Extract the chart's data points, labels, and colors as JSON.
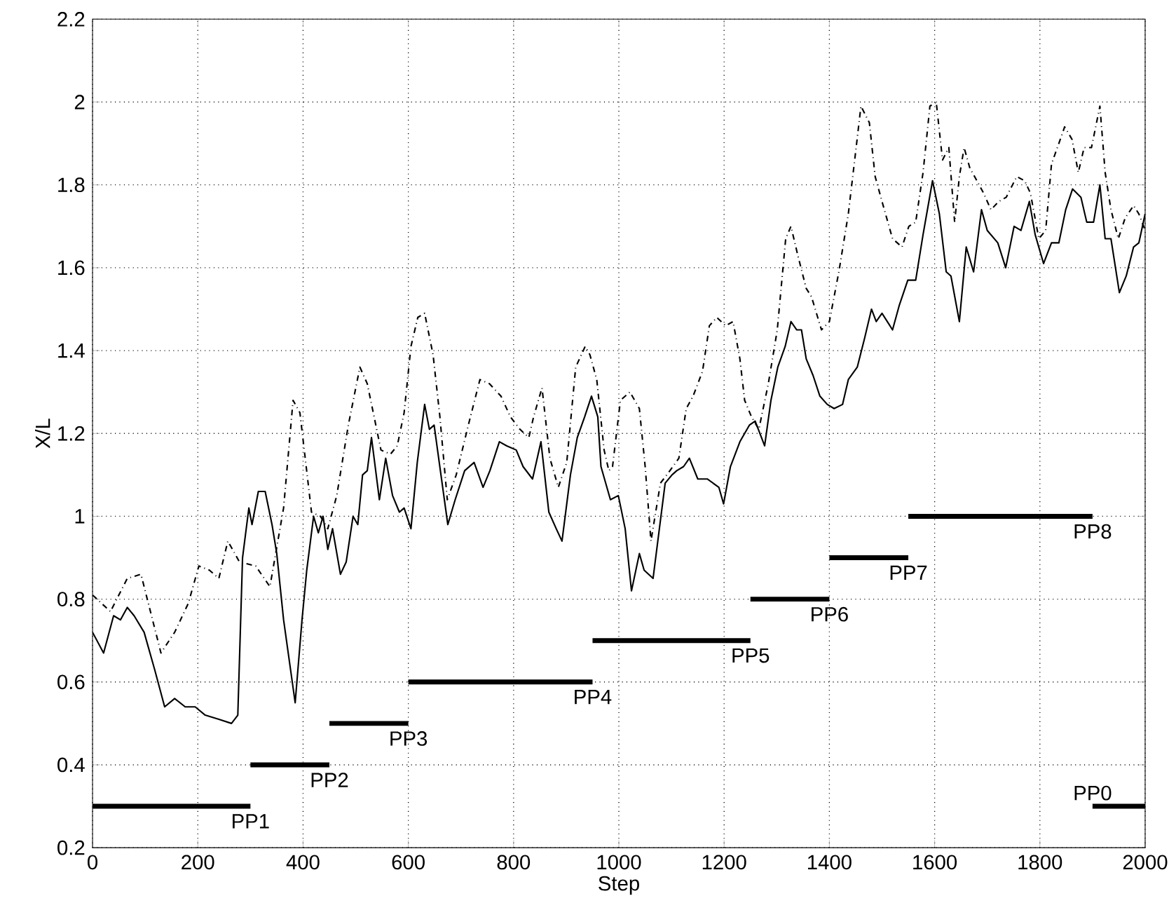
{
  "chart_data": {
    "type": "line",
    "xlabel": "Step",
    "ylabel": "X/L",
    "xlim": [
      0,
      2000
    ],
    "ylim": [
      0.2,
      2.2
    ],
    "xticks": [
      0,
      200,
      400,
      600,
      800,
      1000,
      1200,
      1400,
      1600,
      1800,
      2000
    ],
    "yticks": [
      0.2,
      0.4,
      0.6,
      0.8,
      1,
      1.2,
      1.4,
      1.6,
      1.8,
      2,
      2.2
    ],
    "grid": true,
    "series": [
      {
        "color": "#000000",
        "line_style": "solid",
        "x": [
          0,
          21,
          40,
          53,
          66,
          79,
          98,
          118,
          137,
          156,
          176,
          195,
          214,
          240,
          264,
          276,
          285,
          297,
          303,
          315,
          328,
          341,
          350,
          363,
          385,
          398,
          407,
          420,
          429,
          438,
          447,
          456,
          471,
          482,
          495,
          504,
          513,
          522,
          530,
          545,
          557,
          570,
          583,
          592,
          605,
          617,
          631,
          640,
          649,
          662,
          675,
          689,
          707,
          725,
          742,
          755,
          773,
          787,
          805,
          818,
          836,
          852,
          867,
          881,
          892,
          908,
          921,
          935,
          948,
          960,
          966,
          984,
          999,
          1012,
          1024,
          1039,
          1048,
          1065,
          1074,
          1088,
          1101,
          1110,
          1123,
          1134,
          1150,
          1168,
          1190,
          1199,
          1212,
          1230,
          1248,
          1259,
          1277,
          1289,
          1302,
          1316,
          1327,
          1338,
          1347,
          1356,
          1369,
          1382,
          1396,
          1409,
          1425,
          1436,
          1453,
          1467,
          1480,
          1489,
          1500,
          1520,
          1533,
          1549,
          1564,
          1578,
          1596,
          1609,
          1622,
          1631,
          1647,
          1660,
          1674,
          1689,
          1700,
          1720,
          1735,
          1751,
          1764,
          1780,
          1791,
          1807,
          1822,
          1836,
          1849,
          1862,
          1878,
          1889,
          1902,
          1914,
          1924,
          1935,
          1951,
          1964,
          1978,
          1988,
          2000
        ],
        "values": [
          0.72,
          0.67,
          0.76,
          0.75,
          0.78,
          0.76,
          0.72,
          0.63,
          0.54,
          0.56,
          0.54,
          0.54,
          0.52,
          0.51,
          0.5,
          0.52,
          0.9,
          1.02,
          0.98,
          1.06,
          1.06,
          0.98,
          0.91,
          0.75,
          0.55,
          0.75,
          0.87,
          1.0,
          0.96,
          1.0,
          0.92,
          0.97,
          0.86,
          0.89,
          1.0,
          0.98,
          1.1,
          1.11,
          1.19,
          1.04,
          1.14,
          1.05,
          1.01,
          1.02,
          0.97,
          1.13,
          1.27,
          1.21,
          1.22,
          1.1,
          0.98,
          1.04,
          1.11,
          1.13,
          1.07,
          1.11,
          1.18,
          1.17,
          1.16,
          1.12,
          1.09,
          1.18,
          1.01,
          0.97,
          0.94,
          1.1,
          1.19,
          1.24,
          1.29,
          1.24,
          1.12,
          1.04,
          1.05,
          0.97,
          0.82,
          0.91,
          0.87,
          0.85,
          0.94,
          1.08,
          1.1,
          1.11,
          1.12,
          1.14,
          1.09,
          1.09,
          1.07,
          1.03,
          1.12,
          1.18,
          1.22,
          1.23,
          1.17,
          1.28,
          1.36,
          1.41,
          1.47,
          1.45,
          1.45,
          1.38,
          1.34,
          1.29,
          1.27,
          1.26,
          1.27,
          1.33,
          1.36,
          1.43,
          1.5,
          1.47,
          1.49,
          1.45,
          1.51,
          1.57,
          1.57,
          1.68,
          1.81,
          1.73,
          1.59,
          1.58,
          1.47,
          1.65,
          1.59,
          1.74,
          1.69,
          1.66,
          1.6,
          1.7,
          1.69,
          1.76,
          1.68,
          1.61,
          1.66,
          1.66,
          1.74,
          1.79,
          1.77,
          1.71,
          1.71,
          1.8,
          1.67,
          1.67,
          1.54,
          1.58,
          1.65,
          1.66,
          1.73
        ]
      },
      {
        "color": "#000000",
        "line_style": "dashdot",
        "x": [
          0,
          34,
          66,
          92,
          130,
          156,
          182,
          202,
          222,
          240,
          257,
          266,
          279,
          310,
          337,
          363,
          381,
          394,
          416,
          433,
          447,
          464,
          486,
          508,
          522,
          535,
          548,
          566,
          579,
          592,
          605,
          618,
          631,
          647,
          660,
          674,
          691,
          714,
          736,
          754,
          776,
          794,
          812,
          829,
          838,
          854,
          869,
          885,
          901,
          918,
          936,
          945,
          958,
          972,
          981,
          988,
          1003,
          1021,
          1039,
          1050,
          1061,
          1079,
          1097,
          1114,
          1128,
          1141,
          1159,
          1172,
          1186,
          1203,
          1217,
          1230,
          1239,
          1252,
          1266,
          1284,
          1301,
          1317,
          1327,
          1340,
          1356,
          1366,
          1385,
          1400,
          1418,
          1436,
          1449,
          1460,
          1476,
          1487,
          1500,
          1520,
          1538,
          1551,
          1564,
          1578,
          1591,
          1603,
          1615,
          1627,
          1638,
          1647,
          1656,
          1667,
          1676,
          1693,
          1707,
          1722,
          1736,
          1756,
          1771,
          1782,
          1798,
          1811,
          1822,
          1836,
          1847,
          1861,
          1873,
          1884,
          1898,
          1914,
          1924,
          1935,
          1949,
          1962,
          1978,
          1988,
          2000
        ],
        "values": [
          0.81,
          0.77,
          0.85,
          0.86,
          0.67,
          0.72,
          0.79,
          0.88,
          0.87,
          0.85,
          0.94,
          0.92,
          0.89,
          0.88,
          0.83,
          1.02,
          1.28,
          1.25,
          1.01,
          1.0,
          0.97,
          1.05,
          1.22,
          1.36,
          1.32,
          1.24,
          1.16,
          1.15,
          1.17,
          1.25,
          1.41,
          1.48,
          1.49,
          1.39,
          1.24,
          1.04,
          1.1,
          1.22,
          1.33,
          1.32,
          1.29,
          1.24,
          1.21,
          1.19,
          1.24,
          1.31,
          1.14,
          1.07,
          1.13,
          1.36,
          1.41,
          1.39,
          1.33,
          1.16,
          1.11,
          1.12,
          1.28,
          1.3,
          1.26,
          1.12,
          0.94,
          1.08,
          1.11,
          1.14,
          1.26,
          1.29,
          1.35,
          1.46,
          1.48,
          1.46,
          1.47,
          1.38,
          1.28,
          1.24,
          1.21,
          1.32,
          1.45,
          1.67,
          1.7,
          1.63,
          1.55,
          1.53,
          1.45,
          1.47,
          1.59,
          1.73,
          1.87,
          1.99,
          1.95,
          1.82,
          1.76,
          1.67,
          1.65,
          1.7,
          1.71,
          1.83,
          1.99,
          2.0,
          1.86,
          1.89,
          1.71,
          1.82,
          1.89,
          1.84,
          1.82,
          1.78,
          1.74,
          1.76,
          1.77,
          1.82,
          1.81,
          1.78,
          1.67,
          1.69,
          1.85,
          1.9,
          1.94,
          1.91,
          1.83,
          1.89,
          1.89,
          1.99,
          1.83,
          1.74,
          1.67,
          1.72,
          1.75,
          1.73,
          1.69
        ]
      },
      {
        "color": "#000000",
        "x": [
          0,
          300
        ],
        "values": [
          0.3,
          0.3
        ]
      },
      {
        "color": "#000000",
        "x": [
          300,
          450
        ],
        "values": [
          0.4,
          0.4
        ]
      },
      {
        "color": "#000000",
        "x": [
          450,
          600
        ],
        "values": [
          0.5,
          0.5
        ]
      },
      {
        "color": "#000000",
        "x": [
          600,
          950
        ],
        "values": [
          0.6,
          0.6
        ]
      },
      {
        "color": "#000000",
        "x": [
          950,
          1250
        ],
        "values": [
          0.7,
          0.7
        ]
      },
      {
        "color": "#000000",
        "x": [
          1250,
          1400
        ],
        "values": [
          0.8,
          0.8
        ]
      },
      {
        "color": "#000000",
        "x": [
          1400,
          1550
        ],
        "values": [
          0.9,
          0.9
        ]
      },
      {
        "color": "#000000",
        "x": [
          1550,
          1900
        ],
        "values": [
          1.0,
          1.0
        ]
      },
      {
        "color": "#000000",
        "x": [
          1900,
          2000
        ],
        "values": [
          0.3,
          0.3
        ]
      }
    ],
    "annotations": [
      {
        "text": "PP1",
        "x": 300,
        "y": 0.3
      },
      {
        "text": "PP2",
        "x": 450,
        "y": 0.4
      },
      {
        "text": "PP3",
        "x": 600,
        "y": 0.5
      },
      {
        "text": "PP4",
        "x": 950,
        "y": 0.6
      },
      {
        "text": "PP5",
        "x": 1250,
        "y": 0.7
      },
      {
        "text": "PP6",
        "x": 1400,
        "y": 0.8
      },
      {
        "text": "PP7",
        "x": 1550,
        "y": 0.9
      },
      {
        "text": "PP8",
        "x": 1900,
        "y": 1.0
      },
      {
        "text": "PP0",
        "x": 1900,
        "y": 0.3
      }
    ]
  }
}
